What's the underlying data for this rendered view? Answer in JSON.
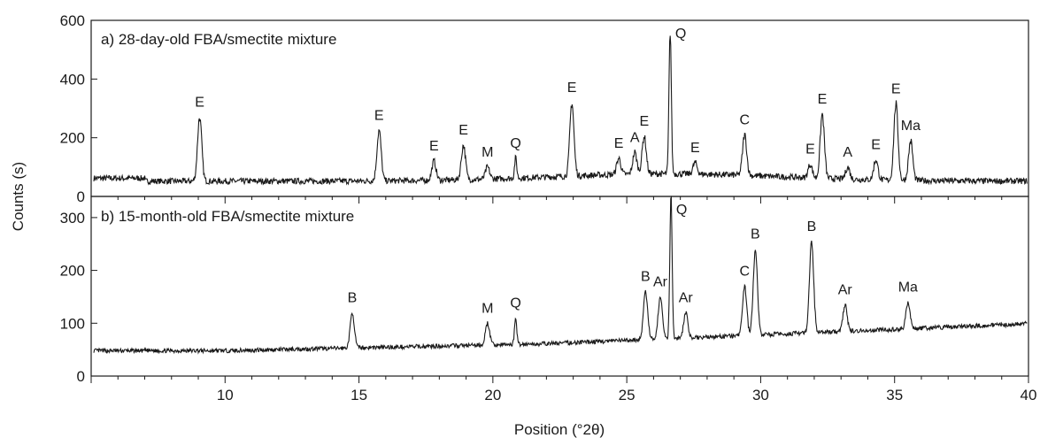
{
  "chart_data": [
    {
      "type": "line",
      "title": "a) 28-day-old FBA/smectite mixture",
      "xlabel": "Position (°2θ)",
      "ylabel": "Counts (s)",
      "xlim": [
        5,
        40
      ],
      "ylim": [
        0,
        600
      ],
      "yticks": [
        0,
        200,
        400,
        600
      ],
      "grid": false,
      "peaks": [
        {
          "x": 9.05,
          "y": 270,
          "label": "E"
        },
        {
          "x": 15.75,
          "y": 225,
          "label": "E"
        },
        {
          "x": 17.8,
          "y": 120,
          "label": "E"
        },
        {
          "x": 18.9,
          "y": 175,
          "label": "E"
        },
        {
          "x": 19.8,
          "y": 100,
          "label": "M"
        },
        {
          "x": 20.85,
          "y": 130,
          "label": "Q"
        },
        {
          "x": 22.95,
          "y": 320,
          "label": "E"
        },
        {
          "x": 24.7,
          "y": 130,
          "label": "E"
        },
        {
          "x": 25.3,
          "y": 150,
          "label": "A"
        },
        {
          "x": 25.65,
          "y": 205,
          "label": "E"
        },
        {
          "x": 26.62,
          "y": 565,
          "label": "Q"
        },
        {
          "x": 27.55,
          "y": 115,
          "label": "E"
        },
        {
          "x": 29.4,
          "y": 210,
          "label": "C"
        },
        {
          "x": 31.85,
          "y": 110,
          "label": "E"
        },
        {
          "x": 32.3,
          "y": 280,
          "label": "E"
        },
        {
          "x": 33.25,
          "y": 100,
          "label": "A"
        },
        {
          "x": 34.3,
          "y": 125,
          "label": "E"
        },
        {
          "x": 35.05,
          "y": 315,
          "label": "E"
        },
        {
          "x": 35.6,
          "y": 190,
          "label": "Ma"
        }
      ]
    },
    {
      "type": "line",
      "title": "b) 15-month-old FBA/smectite mixture",
      "xlabel": "Position (°2θ)",
      "ylabel": "Counts (s)",
      "xlim": [
        5,
        40
      ],
      "ylim": [
        0,
        340
      ],
      "xticks": [
        10,
        15,
        20,
        25,
        30,
        35,
        40
      ],
      "yticks": [
        0,
        100,
        200,
        300
      ],
      "grid": false,
      "peaks": [
        {
          "x": 14.75,
          "y": 120,
          "label": "B"
        },
        {
          "x": 19.8,
          "y": 100,
          "label": "M"
        },
        {
          "x": 20.85,
          "y": 110,
          "label": "Q"
        },
        {
          "x": 25.7,
          "y": 160,
          "label": "B"
        },
        {
          "x": 26.25,
          "y": 150,
          "label": "Ar"
        },
        {
          "x": 26.65,
          "y": 345,
          "label": "Q"
        },
        {
          "x": 27.2,
          "y": 120,
          "label": "Ar"
        },
        {
          "x": 29.4,
          "y": 170,
          "label": "C"
        },
        {
          "x": 29.8,
          "y": 240,
          "label": "B"
        },
        {
          "x": 31.9,
          "y": 255,
          "label": "B"
        },
        {
          "x": 33.15,
          "y": 135,
          "label": "Ar"
        },
        {
          "x": 35.5,
          "y": 140,
          "label": "Ma"
        }
      ]
    }
  ]
}
